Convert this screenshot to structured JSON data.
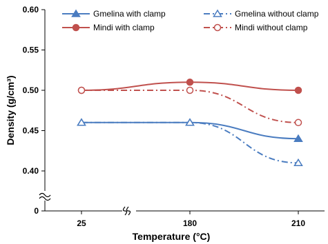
{
  "chart_data": {
    "type": "line",
    "xlabel": "Temperature (°C)",
    "ylabel": "Density (g/cm³)",
    "categories": [
      "25",
      "180",
      "210"
    ],
    "ylim": [
      0.4,
      0.6
    ],
    "y_ticks": [
      "0.60",
      "0.55",
      "0.50",
      "0.45",
      "0.40"
    ],
    "y_zero_label": "0",
    "axis_breaks": {
      "x": "between 25 and 180",
      "y": "between 0 and 0.40"
    },
    "grid": false,
    "legend": "top",
    "series": [
      {
        "name": "Gmelina with clamp",
        "values": [
          0.46,
          0.46,
          0.44
        ],
        "color": "#4a7cc0",
        "line": "solid",
        "marker": "triangle-filled"
      },
      {
        "name": "Gmelina without clamp",
        "values": [
          0.46,
          0.46,
          0.41
        ],
        "color": "#4a7cc0",
        "line": "dashdot",
        "marker": "triangle-open"
      },
      {
        "name": "Mindi with clamp",
        "values": [
          0.5,
          0.51,
          0.5
        ],
        "color": "#c0504d",
        "line": "solid",
        "marker": "circle-filled"
      },
      {
        "name": "Mindi without clamp",
        "values": [
          0.5,
          0.5,
          0.46
        ],
        "color": "#c0504d",
        "line": "dashdot",
        "marker": "circle-open"
      }
    ]
  }
}
